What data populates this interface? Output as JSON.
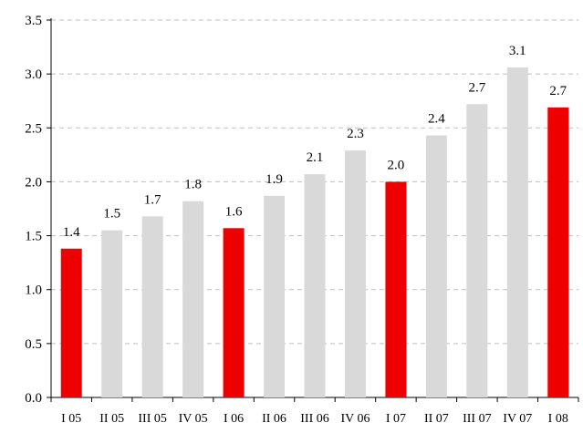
{
  "chart_data": {
    "type": "bar",
    "categories": [
      "I 05",
      "II 05",
      "III 05",
      "IV 05",
      "I 06",
      "II 06",
      "III 06",
      "IV 06",
      "I 07",
      "II 07",
      "III 07",
      "IV 07",
      "I 08"
    ],
    "values": [
      1.38,
      1.55,
      1.68,
      1.82,
      1.57,
      1.87,
      2.07,
      2.29,
      2.0,
      2.43,
      2.72,
      3.06,
      2.69
    ],
    "data_labels": [
      "1.4",
      "1.5",
      "1.7",
      "1.8",
      "1.6",
      "1.9",
      "2.1",
      "2.3",
      "2.0",
      "2.4",
      "2.7",
      "3.1",
      "2.7"
    ],
    "highlighted": [
      true,
      false,
      false,
      false,
      true,
      false,
      false,
      false,
      true,
      false,
      false,
      false,
      true
    ],
    "y_ticks": [
      "0.0",
      "0.5",
      "1.0",
      "1.5",
      "2.0",
      "2.5",
      "3.0",
      "3.5"
    ],
    "ylim": [
      0,
      3.5
    ],
    "title": "",
    "xlabel": "",
    "ylabel": "",
    "grid": "horizontal dashed",
    "colors": {
      "highlight": "#ee0000",
      "normal": "#d9d9d9",
      "grid": "#bfbfbf",
      "axis": "#000000"
    }
  }
}
